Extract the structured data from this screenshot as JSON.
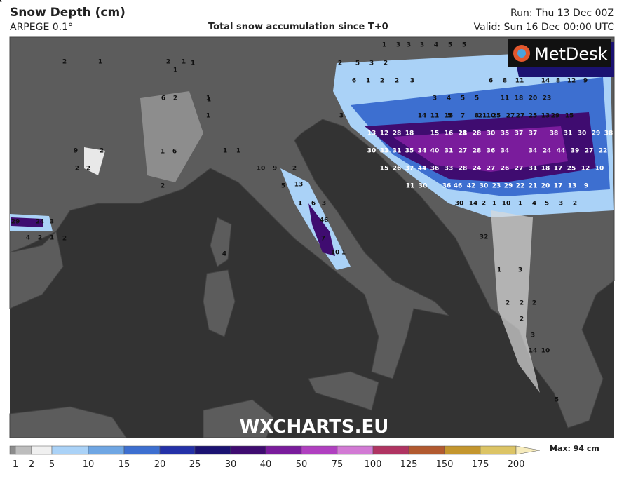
{
  "header": {
    "title": "Snow Depth (cm)",
    "model": "ARPEGE 0.1°",
    "subtitle": "Total snow accumulation since T+0",
    "run": "Run: Thu 13 Dec 00Z",
    "valid": "Valid: Sun 16 Dec 00:00 UTC"
  },
  "map": {
    "logo": "MetDesk",
    "watermark": "WXCHARTS.EU",
    "labels": [
      2,
      1,
      2,
      1,
      1,
      1,
      6,
      2,
      1,
      1,
      1,
      2,
      2,
      2,
      9,
      1,
      6,
      2,
      1,
      1,
      10,
      9,
      2,
      5,
      13,
      1,
      6,
      3,
      46,
      7,
      10,
      1,
      4,
      29,
      24,
      3,
      4,
      2,
      1,
      2,
      1,
      3,
      3,
      3,
      4,
      5,
      5,
      2,
      5,
      3,
      2,
      6,
      1,
      2,
      2,
      3,
      3,
      4,
      5,
      5,
      6,
      8,
      11,
      14,
      8,
      12,
      9,
      5,
      7,
      8,
      10,
      11,
      18,
      20,
      23,
      13,
      3,
      14,
      11,
      15,
      18,
      21,
      25,
      27,
      27,
      25,
      29,
      15,
      13,
      12,
      28,
      18,
      15,
      16,
      21,
      28,
      30,
      35,
      37,
      37,
      38,
      31,
      30,
      29,
      38,
      30,
      33,
      31,
      35,
      34,
      40,
      31,
      27,
      28,
      36,
      34,
      34,
      24,
      44,
      39,
      27,
      22,
      15,
      26,
      37,
      44,
      36,
      33,
      28,
      24,
      27,
      26,
      27,
      31,
      18,
      17,
      25,
      12,
      10,
      11,
      30,
      36,
      46,
      42,
      30,
      23,
      29,
      22,
      21,
      20,
      17,
      13,
      9,
      30,
      14,
      2,
      1,
      10,
      1,
      4,
      5,
      3,
      2,
      32,
      1,
      3,
      2,
      2,
      2,
      2,
      3,
      14,
      10,
      5,
      1
    ]
  },
  "legend": {
    "ticks": [
      1,
      2,
      5,
      10,
      15,
      20,
      25,
      30,
      40,
      50,
      75,
      100,
      125,
      150,
      175,
      200
    ],
    "colors": [
      "#8c8c8c",
      "#bdbdbd",
      "#f0f0f0",
      "#aad2f7",
      "#6fa6e3",
      "#3d6fd0",
      "#2431a8",
      "#1b1272",
      "#3f0c70",
      "#7a1c9c",
      "#b040c0",
      "#d27ad4",
      "#b03462",
      "#b25a30",
      "#c4962e",
      "#dcc465",
      "#f6ebbc"
    ],
    "max": "Max: 94 cm"
  }
}
